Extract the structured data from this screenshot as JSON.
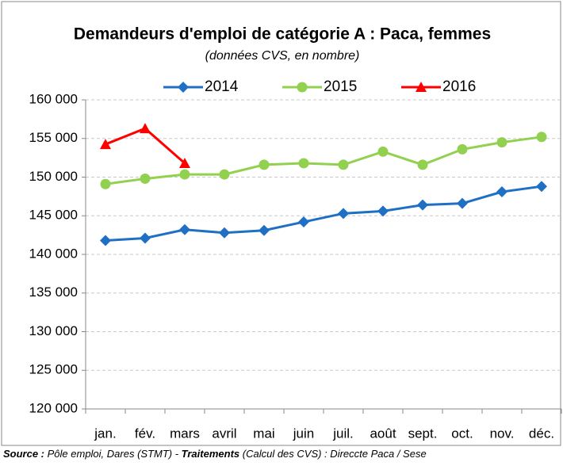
{
  "chart_data": {
    "type": "line",
    "title": "Demandeurs d'emploi de catégorie A : Paca, femmes",
    "subtitle": "(données CVS, en nombre)",
    "categories": [
      "jan.",
      "fév.",
      "mars",
      "avril",
      "mai",
      "juin",
      "juil.",
      "août",
      "sept.",
      "oct.",
      "nov.",
      "déc."
    ],
    "series": [
      {
        "name": "2014",
        "color": "#1f6fc5",
        "marker": "diamond",
        "values": [
          141800,
          142100,
          143200,
          142800,
          143100,
          144200,
          145300,
          145600,
          146400,
          146600,
          148100,
          148800
        ]
      },
      {
        "name": "2015",
        "color": "#92d050",
        "marker": "circle",
        "values": [
          149100,
          149800,
          150350,
          150350,
          151600,
          151800,
          151600,
          153300,
          151600,
          153600,
          154500,
          155200
        ]
      },
      {
        "name": "2016",
        "color": "#ff0000",
        "marker": "triangle",
        "values": [
          154250,
          156300,
          151800,
          null,
          null,
          null,
          null,
          null,
          null,
          null,
          null,
          null
        ]
      }
    ],
    "ylim": [
      120000,
      160000
    ],
    "yticks": [
      {
        "value": 120000,
        "label": "120 000"
      },
      {
        "value": 125000,
        "label": "125 000"
      },
      {
        "value": 130000,
        "label": "130 000"
      },
      {
        "value": 135000,
        "label": "135 000"
      },
      {
        "value": 140000,
        "label": "140 000"
      },
      {
        "value": 145000,
        "label": "145 000"
      },
      {
        "value": 150000,
        "label": "150 000"
      },
      {
        "value": 155000,
        "label": "155 000"
      },
      {
        "value": 160000,
        "label": "160 000"
      }
    ],
    "grid": true,
    "legend": "top",
    "source": [
      "Source :",
      " Pôle emploi, Dares (STMT) - ",
      "Traitements",
      " (Calcul des CVS) :",
      " Direccte Paca / Sese"
    ]
  }
}
